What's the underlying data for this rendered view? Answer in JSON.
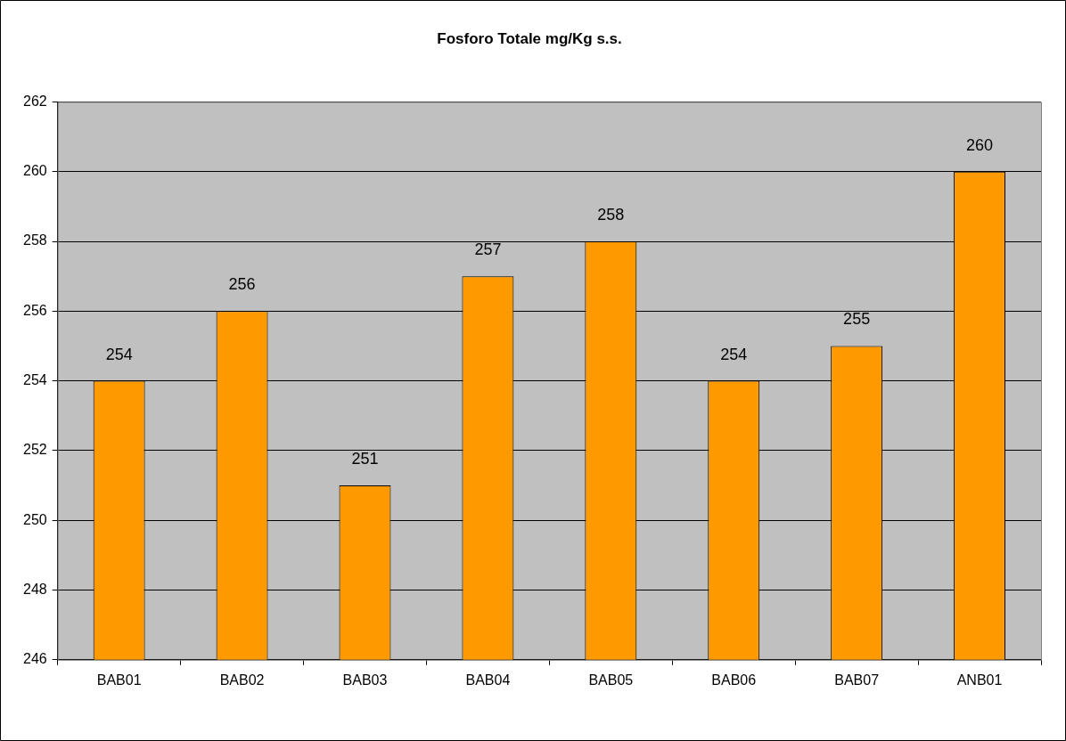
{
  "chart_data": {
    "type": "bar",
    "title": "Fosforo Totale mg/Kg s.s.",
    "categories": [
      "BAB01",
      "BAB02",
      "BAB03",
      "BAB04",
      "BAB05",
      "BAB06",
      "BAB07",
      "ANB01"
    ],
    "values": [
      254,
      256,
      251,
      257,
      258,
      254,
      255,
      260
    ],
    "color": "#ff9900",
    "ylim": [
      246,
      262
    ],
    "yticks": [
      246,
      248,
      250,
      252,
      254,
      256,
      258,
      260,
      262
    ],
    "grid": "y",
    "legend": false,
    "data_labels": true
  }
}
